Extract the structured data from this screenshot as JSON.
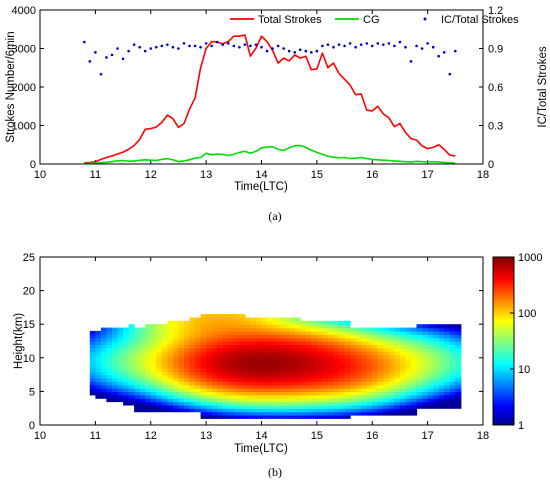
{
  "chart_data": [
    {
      "type": "line",
      "panel_label": "(a)",
      "xlabel": "Time(LTC)",
      "ylabel": "Strokes Number/6min",
      "y2label": "IC/Total Strokes",
      "xlim": [
        10,
        18
      ],
      "ylim": [
        0,
        4000
      ],
      "y2lim": [
        0,
        1.2
      ],
      "xticks": [
        "10",
        "11",
        "12",
        "13",
        "14",
        "15",
        "16",
        "17",
        "18"
      ],
      "yticks": [
        "0",
        "1000",
        "2000",
        "3000",
        "4000"
      ],
      "y2ticks": [
        "0",
        "0.3",
        "0.6",
        "0.9",
        "1.2"
      ],
      "legend_position": "top-right",
      "series": [
        {
          "name": "Total Strokes",
          "axis": "left",
          "color": "#ff0000",
          "style": "line",
          "x": [
            10.8,
            10.9,
            11.0,
            11.1,
            11.2,
            11.3,
            11.4,
            11.5,
            11.6,
            11.7,
            11.8,
            11.9,
            12.0,
            12.1,
            12.2,
            12.3,
            12.4,
            12.5,
            12.6,
            12.7,
            12.8,
            12.9,
            13.0,
            13.1,
            13.2,
            13.3,
            13.4,
            13.5,
            13.6,
            13.7,
            13.8,
            13.9,
            14.0,
            14.1,
            14.2,
            14.3,
            14.4,
            14.5,
            14.6,
            14.7,
            14.8,
            14.9,
            15.0,
            15.1,
            15.2,
            15.3,
            15.4,
            15.5,
            15.6,
            15.7,
            15.8,
            15.9,
            16.0,
            16.1,
            16.2,
            16.3,
            16.4,
            16.5,
            16.6,
            16.7,
            16.8,
            16.9,
            17.0,
            17.1,
            17.2,
            17.3,
            17.4,
            17.5
          ],
          "values": [
            30,
            40,
            60,
            120,
            170,
            210,
            260,
            310,
            380,
            480,
            640,
            900,
            920,
            960,
            1080,
            1270,
            1180,
            950,
            1050,
            1420,
            1720,
            2500,
            3000,
            3180,
            3170,
            3120,
            3180,
            3320,
            3320,
            3350,
            2800,
            3010,
            3320,
            3180,
            2950,
            2620,
            2750,
            2680,
            2830,
            2750,
            2800,
            2450,
            2470,
            2880,
            2500,
            2620,
            2350,
            2200,
            2050,
            1800,
            1820,
            1400,
            1380,
            1500,
            1300,
            1200,
            970,
            1050,
            820,
            660,
            620,
            470,
            400,
            430,
            500,
            380,
            230,
            210
          ]
        },
        {
          "name": "CG",
          "axis": "left",
          "color": "#00dd00",
          "style": "line",
          "x": [
            10.8,
            10.9,
            11.0,
            11.1,
            11.2,
            11.3,
            11.4,
            11.5,
            11.6,
            11.7,
            11.8,
            11.9,
            12.0,
            12.1,
            12.2,
            12.3,
            12.4,
            12.5,
            12.6,
            12.7,
            12.8,
            12.9,
            13.0,
            13.1,
            13.2,
            13.3,
            13.4,
            13.5,
            13.6,
            13.7,
            13.8,
            13.9,
            14.0,
            14.1,
            14.2,
            14.3,
            14.4,
            14.5,
            14.6,
            14.7,
            14.8,
            14.9,
            15.0,
            15.1,
            15.2,
            15.3,
            15.4,
            15.5,
            15.6,
            15.7,
            15.8,
            15.9,
            16.0,
            16.1,
            16.2,
            16.3,
            16.4,
            16.5,
            16.6,
            16.7,
            16.8,
            16.9,
            17.0,
            17.1,
            17.2,
            17.3,
            17.4,
            17.5
          ],
          "values": [
            10,
            15,
            25,
            35,
            45,
            60,
            80,
            90,
            70,
            80,
            95,
            110,
            100,
            90,
            120,
            140,
            110,
            60,
            80,
            110,
            150,
            170,
            280,
            240,
            260,
            250,
            220,
            250,
            300,
            330,
            280,
            330,
            420,
            440,
            450,
            380,
            350,
            420,
            470,
            480,
            430,
            360,
            300,
            250,
            200,
            180,
            160,
            170,
            140,
            150,
            170,
            140,
            120,
            110,
            100,
            90,
            80,
            70,
            60,
            50,
            70,
            60,
            50,
            60,
            50,
            40,
            30,
            20
          ]
        },
        {
          "name": "IC/Total Strokes",
          "axis": "right",
          "color": "#0000cc",
          "style": "dots",
          "x": [
            10.8,
            10.9,
            11.0,
            11.1,
            11.2,
            11.3,
            11.4,
            11.5,
            11.6,
            11.7,
            11.8,
            11.9,
            12.0,
            12.1,
            12.2,
            12.3,
            12.4,
            12.5,
            12.6,
            12.7,
            12.8,
            12.9,
            13.0,
            13.1,
            13.2,
            13.3,
            13.4,
            13.5,
            13.6,
            13.7,
            13.8,
            13.9,
            14.0,
            14.1,
            14.2,
            14.3,
            14.4,
            14.5,
            14.6,
            14.7,
            14.8,
            14.9,
            15.0,
            15.1,
            15.2,
            15.3,
            15.4,
            15.5,
            15.6,
            15.7,
            15.8,
            15.9,
            16.0,
            16.1,
            16.2,
            16.3,
            16.4,
            16.5,
            16.6,
            16.7,
            16.8,
            16.9,
            17.0,
            17.1,
            17.2,
            17.3,
            17.4,
            17.5
          ],
          "values": [
            0.95,
            0.8,
            0.87,
            0.7,
            0.83,
            0.85,
            0.9,
            0.82,
            0.88,
            0.93,
            0.91,
            0.88,
            0.9,
            0.91,
            0.92,
            0.93,
            0.91,
            0.9,
            0.94,
            0.92,
            0.92,
            0.91,
            0.94,
            0.92,
            0.95,
            0.93,
            0.94,
            0.92,
            0.91,
            0.93,
            0.92,
            0.93,
            0.91,
            0.88,
            0.9,
            0.92,
            0.9,
            0.88,
            0.87,
            0.89,
            0.88,
            0.87,
            0.88,
            0.92,
            0.93,
            0.91,
            0.93,
            0.92,
            0.94,
            0.91,
            0.93,
            0.94,
            0.92,
            0.94,
            0.93,
            0.94,
            0.92,
            0.95,
            0.91,
            0.8,
            0.92,
            0.9,
            0.94,
            0.91,
            0.84,
            0.87,
            0.7,
            0.88
          ]
        }
      ]
    },
    {
      "type": "heatmap",
      "panel_label": "(b)",
      "xlabel": "Time(LTC)",
      "ylabel": "Height(km)",
      "xlim": [
        10,
        18
      ],
      "ylim": [
        0,
        25
      ],
      "xticks": [
        "10",
        "11",
        "12",
        "13",
        "14",
        "15",
        "16",
        "17",
        "18"
      ],
      "yticks": [
        "0",
        "5",
        "10",
        "15",
        "20",
        "25"
      ],
      "colorbar": {
        "scale": "log",
        "range": [
          1,
          1000
        ],
        "ticks": [
          "1",
          "10",
          "100",
          "1000"
        ],
        "colormap": "jet"
      },
      "description_of_field": "source density peaks near 8-11 km between 13 and 15.5 LTC",
      "core": [
        {
          "x": 13.6,
          "y": 9.5,
          "value": 400
        },
        {
          "x": 13.2,
          "y": 15.5,
          "value": 120
        },
        {
          "x": 14.0,
          "y": 8.5,
          "value": 300
        },
        {
          "x": 15.2,
          "y": 8.5,
          "value": 280
        },
        {
          "x": 14.5,
          "y": 10.5,
          "value": 200
        },
        {
          "x": 16.2,
          "y": 9.5,
          "value": 40
        },
        {
          "x": 12.0,
          "y": 9.5,
          "value": 25
        },
        {
          "x": 17.0,
          "y": 9.5,
          "value": 12
        }
      ]
    }
  ]
}
